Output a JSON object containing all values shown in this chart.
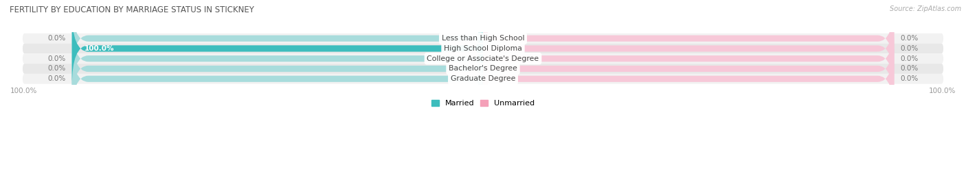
{
  "title": "FERTILITY BY EDUCATION BY MARRIAGE STATUS IN STICKNEY",
  "source": "Source: ZipAtlas.com",
  "categories": [
    "Less than High School",
    "High School Diploma",
    "College or Associate's Degree",
    "Bachelor's Degree",
    "Graduate Degree"
  ],
  "married_values": [
    0.0,
    100.0,
    0.0,
    0.0,
    0.0
  ],
  "unmarried_values": [
    0.0,
    0.0,
    0.0,
    0.0,
    0.0
  ],
  "married_color": "#3DBDBD",
  "unmarried_color": "#F4A0B8",
  "married_bg_color": "#A8DCDC",
  "unmarried_bg_color": "#F7C8D8",
  "row_bg_even": "#F2F2F2",
  "row_bg_odd": "#E8E8E8",
  "label_color": "#777777",
  "title_color": "#555555",
  "axis_label_color": "#999999",
  "max_value": 100.0,
  "bar_height": 0.62,
  "figsize": [
    14.06,
    2.69
  ],
  "dpi": 100
}
